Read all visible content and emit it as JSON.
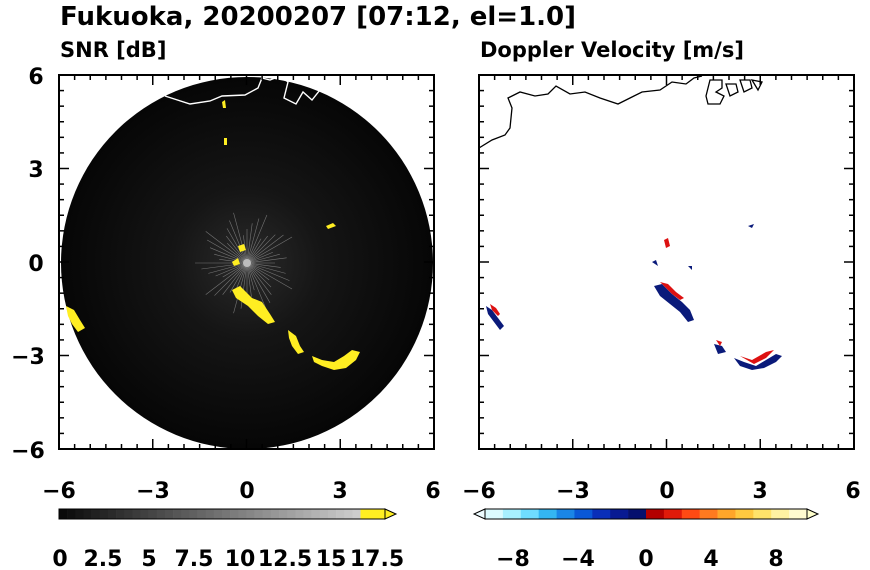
{
  "title": "Fukuoka, 20200207 [07:12, el=1.0]",
  "colors": {
    "snr_bg": "#0a0a0a",
    "echo": "#ffee22",
    "doppler_pos": "#dd1111",
    "doppler_neg": "#0a1a7a",
    "coast": "#000000"
  },
  "chart_data": [
    {
      "type": "heatmap",
      "title": "SNR [dB]",
      "xlabel": "",
      "ylabel": "",
      "xlim": [
        -6,
        6
      ],
      "ylim": [
        -6,
        6
      ],
      "xticks": [
        "−6",
        "−3",
        "0",
        "3",
        "6"
      ],
      "yticks": [
        "6",
        "3",
        "0",
        "−3",
        "−6"
      ],
      "colorbar": {
        "range": [
          0,
          20
        ],
        "extend": "max",
        "ticks": [
          "0",
          "2.5",
          "5",
          "7.5",
          "10",
          "12.5",
          "15",
          "17.5"
        ],
        "colors": [
          "#000000",
          "#ffee22"
        ]
      },
      "echoes": [
        {
          "x": -5.4,
          "y": -1.9
        },
        {
          "x": -0.8,
          "y": -1.2
        },
        {
          "x": 0.6,
          "y": -1.8
        },
        {
          "x": 1.8,
          "y": -2.9
        },
        {
          "x": 2.7,
          "y": -3.4
        },
        {
          "x": 3.3,
          "y": -3.0
        },
        {
          "x": 2.7,
          "y": 1.2
        },
        {
          "x": -0.6,
          "y": 0.4
        }
      ]
    },
    {
      "type": "heatmap",
      "title": "Doppler Velocity [m/s]",
      "xlabel": "",
      "ylabel": "",
      "xlim": [
        -6,
        6
      ],
      "ylim": [
        -6,
        6
      ],
      "xticks": [
        "−6",
        "−3",
        "0",
        "3",
        "6"
      ],
      "yticks": [],
      "colorbar": {
        "range": [
          -10,
          10
        ],
        "extend": "both",
        "ticks": [
          "−8",
          "−4",
          "0",
          "4",
          "8"
        ],
        "colors": [
          "#eefcff",
          "#000077",
          "#dd1111",
          "#ffffcc"
        ]
      },
      "echoes": [
        {
          "x": -5.4,
          "y": -1.9
        },
        {
          "x": 0.6,
          "y": -1.8
        },
        {
          "x": 1.8,
          "y": -2.9
        },
        {
          "x": 2.7,
          "y": -3.4
        },
        {
          "x": 3.3,
          "y": -3.0
        },
        {
          "x": 2.7,
          "y": 1.2
        },
        {
          "x": 0.2,
          "y": 0.3
        }
      ]
    }
  ]
}
